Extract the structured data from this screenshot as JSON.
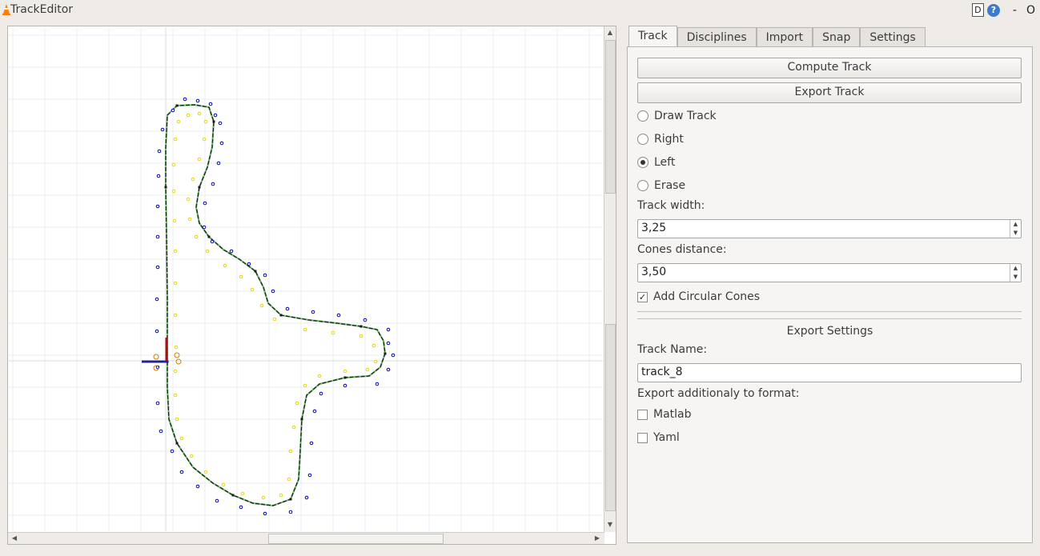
{
  "window": {
    "title": "TrackEditor",
    "btn_d": "D",
    "btn_help": "?",
    "btn_min": "-",
    "btn_max": "O"
  },
  "tabs": [
    {
      "label": "Track",
      "active": true
    },
    {
      "label": "Disciplines",
      "active": false
    },
    {
      "label": "Import",
      "active": false
    },
    {
      "label": "Snap",
      "active": false
    },
    {
      "label": "Settings",
      "active": false
    }
  ],
  "track_tab": {
    "compute_label": "Compute Track",
    "export_label": "Export Track",
    "modes": [
      {
        "label": "Draw Track",
        "checked": false
      },
      {
        "label": "Right",
        "checked": false
      },
      {
        "label": "Left",
        "checked": true
      },
      {
        "label": "Erase",
        "checked": false
      }
    ],
    "track_width_label": "Track width:",
    "track_width_value": "3,25",
    "cones_distance_label": "Cones distance:",
    "cones_distance_value": "3,50",
    "circular_cones_label": "Add Circular Cones",
    "circular_cones_checked": true,
    "export_settings_title": "Export Settings",
    "track_name_label": "Track Name:",
    "track_name_value": "track_8",
    "export_format_label": "Export additionaly to format:",
    "formats": [
      {
        "label": "Matlab",
        "checked": false
      },
      {
        "label": "Yaml",
        "checked": false
      }
    ]
  },
  "canvas": {
    "grid_color": "#e9eef2",
    "centerline_color": "#1a1a1a",
    "centerline_accent_color": "#7cc27c",
    "left_cone_color": "#0000c8",
    "right_cone_color": "#e6d800",
    "axis_x_color": "#2020a0",
    "axis_y_color": "#a01010",
    "start_cone_color": "#d08000"
  }
}
